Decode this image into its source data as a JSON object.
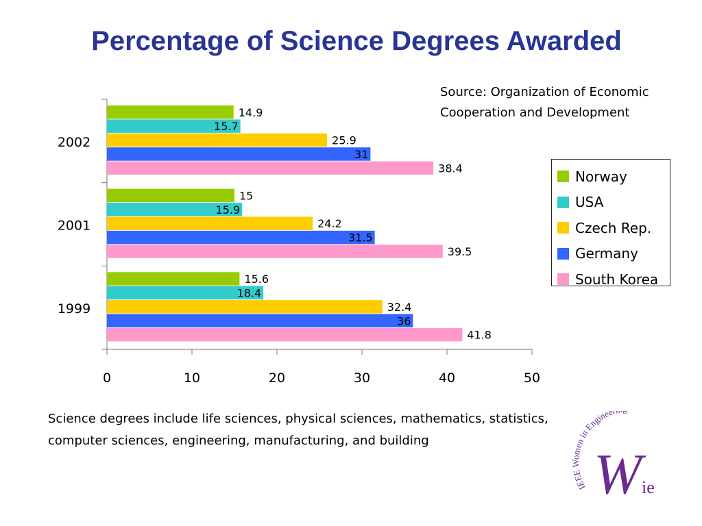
{
  "slide": {
    "title": "Percentage of Science Degrees Awarded",
    "source": "Source: Organization of Economic Cooperation and Development",
    "note": "Science degrees include life sciences, physical sciences, mathematics, statistics, computer sciences, engineering, manufacturing, and building",
    "logo": {
      "arc_text": "IEEE Women in Engineering",
      "mark": "W",
      "mark_suffix": "ie"
    }
  },
  "chart_data": {
    "type": "bar",
    "orientation": "horizontal",
    "title": "",
    "xlabel": "",
    "ylabel": "",
    "categories": [
      "2002",
      "2001",
      "1999"
    ],
    "series": [
      {
        "name": "Norway",
        "color": "#99cc00",
        "values": [
          14.9,
          15,
          15.6
        ]
      },
      {
        "name": "USA",
        "color": "#33cccc",
        "values": [
          15.7,
          15.9,
          18.4
        ]
      },
      {
        "name": "Czech Rep.",
        "color": "#ffcc00",
        "values": [
          25.9,
          24.2,
          32.4
        ]
      },
      {
        "name": "Germany",
        "color": "#3366ff",
        "values": [
          31,
          31.5,
          36
        ]
      },
      {
        "name": "South Korea",
        "color": "#ff99cc",
        "values": [
          38.4,
          39.5,
          41.8
        ]
      }
    ],
    "xlim": [
      0,
      50
    ],
    "xticks": [
      "0",
      "10",
      "20",
      "30",
      "40",
      "50"
    ],
    "grid": false,
    "legend_position": "right"
  }
}
